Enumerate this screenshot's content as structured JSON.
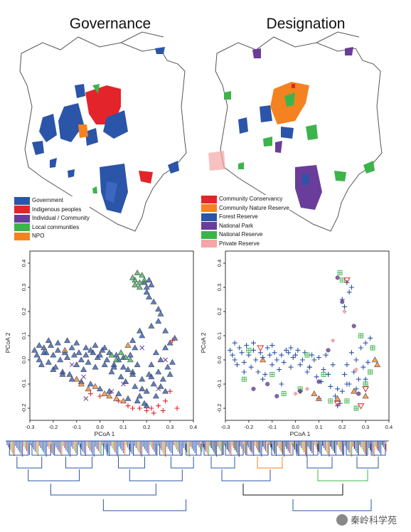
{
  "maps": {
    "left_title": "Governance",
    "right_title": "Designation",
    "governance_legend": [
      {
        "label": "Government",
        "color": "#2a55a8"
      },
      {
        "label": "Indigenous peoples",
        "color": "#e3242b"
      },
      {
        "label": "Individual / Community",
        "color": "#6a3d9a"
      },
      {
        "label": "Local communities",
        "color": "#3cb44b"
      },
      {
        "label": "NPO",
        "color": "#f58220"
      }
    ],
    "designation_legend": [
      {
        "label": "Community Conservancy",
        "color": "#e3242b"
      },
      {
        "label": "Community Nature Reserve",
        "color": "#f58220"
      },
      {
        "label": "Forest Reserve",
        "color": "#2a55a8"
      },
      {
        "label": "National Park",
        "color": "#6a3d9a"
      },
      {
        "label": "National Reserve",
        "color": "#3cb44b"
      },
      {
        "label": "Private Reserve",
        "color": "#f4a6a6"
      }
    ]
  },
  "chart_data": [
    {
      "type": "scatter",
      "panel": "governance",
      "xlabel": "PCoA 1",
      "ylabel": "PCoA 2",
      "xlim": [
        -0.3,
        0.4
      ],
      "ylim": [
        -0.25,
        0.45
      ],
      "xticks": [
        "-0.3",
        "-0.2",
        "-0.1",
        "0.0",
        "0.1",
        "0.2",
        "0.3",
        "0.4"
      ],
      "yticks": [
        "-0.2",
        "-0.1",
        "0.0",
        "0.1",
        "0.2",
        "0.3",
        "0.4"
      ],
      "series": [
        {
          "name": "Government",
          "color": "#2a55a8",
          "marker": "triangle",
          "x": [
            -0.28,
            -0.27,
            -0.26,
            -0.25,
            -0.24,
            -0.23,
            -0.22,
            -0.21,
            -0.2,
            -0.19,
            -0.18,
            -0.17,
            -0.16,
            -0.15,
            -0.14,
            -0.13,
            -0.12,
            -0.11,
            -0.1,
            -0.09,
            -0.08,
            -0.07,
            -0.06,
            -0.05,
            -0.04,
            -0.03,
            -0.02,
            -0.01,
            0.0,
            0.01,
            0.02,
            0.03,
            0.04,
            0.05,
            0.06,
            0.07,
            0.08,
            0.09,
            0.1,
            0.11,
            0.12,
            0.13,
            0.14,
            0.15,
            0.16,
            0.17,
            0.18,
            0.19,
            0.2,
            0.21,
            0.22,
            0.23,
            0.24,
            0.25,
            0.26,
            0.27,
            0.28,
            0.29,
            0.3,
            0.31,
            0.32,
            0.19,
            0.2,
            0.21,
            0.22,
            0.2,
            0.21,
            0.23,
            0.25,
            0.26,
            -0.26,
            -0.24,
            -0.22,
            -0.2,
            -0.18,
            -0.16,
            -0.14,
            -0.12,
            -0.1,
            -0.08,
            -0.06,
            -0.04,
            -0.02,
            0.0,
            0.02,
            0.04,
            0.06,
            0.08,
            0.1,
            0.12,
            0.14,
            0.16,
            0.18,
            0.2,
            0.22,
            0.24,
            0.26,
            0.28,
            0.3,
            0.14,
            0.15,
            0.17,
            0.18,
            0.22,
            0.25,
            0.28
          ],
          "y": [
            0.04,
            0.02,
            0.0,
            -0.02,
            0.05,
            0.03,
            -0.01,
            0.06,
            0.02,
            -0.03,
            0.04,
            0.0,
            -0.05,
            0.03,
            0.01,
            -0.06,
            0.05,
            0.02,
            -0.02,
            0.03,
            0.0,
            -0.04,
            0.02,
            -0.01,
            0.04,
            0.03,
            -0.03,
            0.01,
            0.02,
            0.04,
            -0.02,
            0.0,
            0.03,
            -0.05,
            -0.03,
            0.02,
            0.0,
            -0.07,
            0.01,
            -0.09,
            -0.04,
            0.02,
            -0.06,
            -0.11,
            -0.02,
            -0.15,
            -0.12,
            -0.18,
            -0.13,
            -0.06,
            -0.02,
            -0.1,
            0.03,
            -0.05,
            0.0,
            -0.08,
            0.05,
            -0.03,
            0.07,
            -0.01,
            0.09,
            0.32,
            0.3,
            0.33,
            0.31,
            0.28,
            0.26,
            0.24,
            0.21,
            0.19,
            0.06,
            0.03,
            0.08,
            -0.04,
            0.07,
            -0.06,
            0.08,
            -0.08,
            0.07,
            -0.09,
            0.05,
            -0.1,
            0.06,
            -0.12,
            0.05,
            -0.13,
            -0.02,
            -0.14,
            -0.03,
            -0.16,
            -0.05,
            -0.17,
            -0.08,
            -0.19,
            -0.07,
            -0.15,
            -0.11,
            -0.13,
            -0.06,
            0.08,
            0.05,
            0.12,
            0.1,
            0.14,
            0.16,
            0.12
          ]
        },
        {
          "name": "Indigenous peoples",
          "color": "#e3242b",
          "marker": "plus",
          "x": [
            -0.04,
            0.0,
            0.08,
            0.12,
            0.14,
            0.17,
            0.2,
            0.23,
            0.25,
            0.27,
            0.28,
            0.3,
            0.33,
            0.31,
            0.22
          ],
          "y": [
            -0.14,
            -0.15,
            -0.17,
            -0.19,
            -0.2,
            -0.2,
            -0.21,
            -0.22,
            -0.19,
            -0.21,
            -0.17,
            -0.13,
            -0.2,
            0.08,
            -0.2
          ]
        },
        {
          "name": "Individual / Community",
          "color": "#6a3d9a",
          "marker": "x",
          "x": [
            -0.07,
            -0.06,
            0.05,
            0.18,
            0.25,
            0.28,
            -0.12,
            0.1
          ],
          "y": [
            -0.07,
            -0.16,
            -0.13,
            0.05,
            -0.12,
            0.0,
            -0.02,
            -0.1
          ]
        },
        {
          "name": "Local communities",
          "color": "#3cb44b",
          "marker": "triangle",
          "x": [
            0.14,
            0.15,
            0.16,
            0.17,
            0.18,
            0.19,
            0.15,
            0.17,
            0.05,
            0.07,
            0.09,
            0.11,
            0.13
          ],
          "y": [
            0.34,
            0.33,
            0.36,
            0.32,
            0.35,
            0.33,
            0.31,
            0.3,
            0.02,
            0.0,
            0.03,
            0.01,
            0.0
          ]
        },
        {
          "name": "NPO",
          "color": "#f58220",
          "marker": "triangle",
          "x": [
            -0.08,
            -0.05,
            -0.02,
            0.02,
            0.04,
            0.07,
            0.1,
            -0.15,
            -0.1,
            0.12
          ],
          "y": [
            -0.1,
            -0.12,
            -0.11,
            -0.14,
            -0.15,
            -0.16,
            -0.17,
            0.04,
            -0.08,
            0.06
          ]
        }
      ]
    },
    {
      "type": "scatter",
      "panel": "designation",
      "xlabel": "PCoA 1",
      "ylabel": "PCoA 2",
      "xlim": [
        -0.3,
        0.4
      ],
      "ylim": [
        -0.25,
        0.45
      ],
      "xticks": [
        "-0.3",
        "-0.2",
        "-0.1",
        "0.0",
        "0.1",
        "0.2",
        "0.3",
        "0.4"
      ],
      "yticks": [
        "-0.2",
        "-0.1",
        "0.0",
        "0.1",
        "0.2",
        "0.3",
        "0.4"
      ],
      "series": [
        {
          "name": "Forest Reserve",
          "color": "#2a55a8",
          "marker": "plus",
          "x": [
            -0.28,
            -0.27,
            -0.26,
            -0.25,
            -0.24,
            -0.23,
            -0.22,
            -0.21,
            -0.2,
            -0.19,
            -0.18,
            -0.17,
            -0.16,
            -0.15,
            -0.14,
            -0.13,
            -0.12,
            -0.11,
            -0.1,
            -0.09,
            -0.08,
            -0.07,
            -0.06,
            -0.05,
            -0.04,
            -0.03,
            -0.02,
            -0.01,
            0.0,
            0.01,
            0.02,
            0.03,
            0.04,
            0.05,
            0.06,
            0.07,
            0.08,
            0.09,
            0.1,
            0.11,
            0.12,
            0.13,
            0.14,
            0.15,
            0.16,
            0.17,
            0.18,
            0.19,
            0.2,
            0.21,
            0.22,
            0.23,
            0.24,
            0.25,
            0.26,
            0.27,
            0.28,
            0.29,
            0.3,
            0.31,
            0.32,
            0.22,
            0.23,
            0.24,
            0.2,
            0.21,
            -0.26,
            -0.22,
            -0.18,
            -0.14,
            -0.1,
            -0.06,
            -0.02,
            0.02,
            0.06,
            0.1,
            0.14,
            0.18,
            0.22,
            0.26,
            0.3
          ],
          "y": [
            0.04,
            0.02,
            0.0,
            -0.02,
            0.05,
            0.03,
            -0.01,
            0.06,
            0.02,
            -0.03,
            0.04,
            0.0,
            -0.05,
            0.03,
            0.01,
            -0.06,
            0.05,
            0.02,
            -0.02,
            0.03,
            0.0,
            -0.04,
            0.02,
            -0.01,
            0.04,
            0.03,
            -0.03,
            0.01,
            0.02,
            0.04,
            -0.02,
            0.0,
            0.03,
            -0.05,
            -0.03,
            0.02,
            0.0,
            -0.07,
            0.01,
            -0.09,
            -0.04,
            0.02,
            -0.06,
            -0.11,
            -0.02,
            -0.15,
            -0.12,
            -0.18,
            -0.13,
            -0.06,
            -0.02,
            -0.1,
            0.03,
            -0.05,
            0.0,
            -0.08,
            0.05,
            -0.03,
            0.07,
            -0.01,
            0.09,
            0.32,
            0.28,
            0.3,
            0.25,
            0.22,
            0.07,
            -0.05,
            0.07,
            -0.08,
            0.06,
            -0.1,
            0.05,
            -0.13,
            -0.03,
            -0.16,
            -0.06,
            -0.19,
            -0.1,
            -0.12,
            -0.08
          ]
        },
        {
          "name": "National Reserve",
          "color": "#3cb44b",
          "marker": "boxplus",
          "x": [
            -0.22,
            -0.2,
            -0.1,
            -0.05,
            0.02,
            0.05,
            0.12,
            0.15,
            0.22,
            0.26,
            0.28,
            0.3,
            0.32,
            0.33,
            0.19,
            0.2
          ],
          "y": [
            -0.08,
            0.04,
            -0.06,
            -0.14,
            -0.12,
            0.02,
            -0.06,
            -0.17,
            -0.17,
            -0.2,
            0.1,
            -0.1,
            -0.05,
            0.05,
            0.36,
            0.33
          ]
        },
        {
          "name": "National Park",
          "color": "#6a3d9a",
          "marker": "circle",
          "x": [
            -0.18,
            -0.08,
            0.02,
            0.1,
            0.14,
            0.2,
            0.25,
            0.27,
            -0.12,
            0.18
          ],
          "y": [
            -0.12,
            -0.15,
            -0.13,
            -0.09,
            0.04,
            0.24,
            0.14,
            -0.14,
            -0.1,
            0.34
          ]
        },
        {
          "name": "Community Conservancy",
          "color": "#e3242b",
          "marker": "triangle-down",
          "x": [
            0.22,
            0.28,
            0.3,
            -0.15,
            0.18
          ],
          "y": [
            0.33,
            -0.19,
            -0.12,
            0.05,
            -0.18
          ]
        },
        {
          "name": "Community Nature Reserve",
          "color": "#f58220",
          "marker": "triangle",
          "x": [
            0.34,
            0.35,
            0.25,
            0.3,
            0.18,
            0.1,
            -0.14,
            0.08
          ],
          "y": [
            0.0,
            -0.02,
            -0.13,
            -0.15,
            -0.16,
            -0.16,
            0.0,
            -0.14
          ]
        },
        {
          "name": "Private Reserve",
          "color": "#f4a6a6",
          "marker": "diamond",
          "x": [
            0.0,
            0.05,
            0.16,
            0.21,
            0.26
          ],
          "y": [
            -0.14,
            -0.12,
            0.08,
            0.2,
            -0.04
          ]
        }
      ]
    }
  ],
  "watermark": "秦岭科学苑"
}
